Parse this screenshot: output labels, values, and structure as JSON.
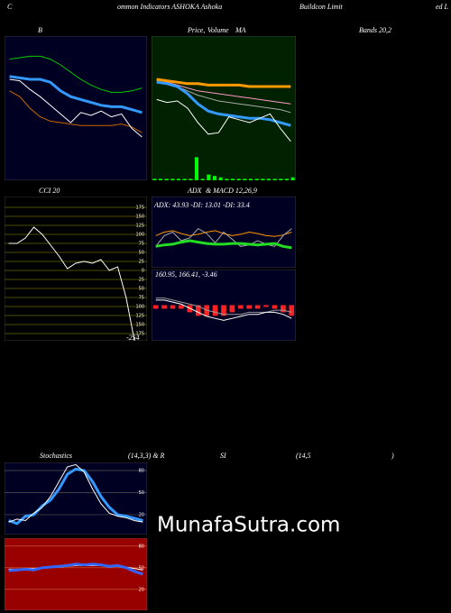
{
  "header": {
    "parts": [
      "C",
      "ommon Indicators ASHOKA Ashoka",
      "Buildcon Limit",
      "ed L"
    ]
  },
  "watermark": "MunafaSutra.com",
  "chart_data": [
    {
      "type": "line",
      "title_parts": [
        "B",
        "Bands 20,2"
      ],
      "background": "#000022",
      "ylim": [
        0,
        100
      ],
      "series": [
        {
          "color": "#00cc00",
          "values": [
            84,
            85,
            86,
            86,
            84,
            80,
            75,
            70,
            66,
            63,
            61,
            61,
            62,
            64
          ]
        },
        {
          "color": "#cc6600",
          "values": [
            62,
            58,
            50,
            44,
            41,
            40,
            39,
            38,
            38,
            38,
            38,
            39,
            37,
            33
          ]
        },
        {
          "color": "#3399ff",
          "thick": true,
          "values": [
            72,
            71,
            70,
            70,
            68,
            62,
            58,
            56,
            54,
            52,
            51,
            51,
            49,
            47
          ]
        },
        {
          "color": "#ffffff",
          "values": [
            70,
            69,
            63,
            58,
            52,
            46,
            40,
            47,
            45,
            48,
            44,
            46,
            36,
            30
          ]
        }
      ]
    },
    {
      "type": "line",
      "title_parts": [
        "Price,",
        "Volume",
        "MA"
      ],
      "background": "#002200",
      "ylim": [
        0,
        100
      ],
      "series": [
        {
          "color": "#00ff00",
          "style": "bar",
          "values": [
            1,
            1,
            1,
            1,
            1,
            1,
            1,
            16,
            1,
            4,
            3,
            2,
            1,
            1,
            1,
            1,
            1,
            1,
            1,
            1,
            1,
            1,
            1,
            2
          ]
        },
        {
          "color": "#aaaaaa",
          "values": [
            69,
            67,
            65,
            62,
            59,
            57,
            55,
            54,
            53,
            52,
            51,
            50,
            49,
            47
          ]
        },
        {
          "color": "#ff99cc",
          "values": [
            70,
            68,
            66,
            64,
            62,
            61,
            60,
            59,
            58,
            57,
            56,
            55,
            54,
            53
          ]
        },
        {
          "color": "#ff9900",
          "thick": true,
          "values": [
            70,
            69,
            68,
            67,
            67,
            66,
            66,
            66,
            66,
            65,
            65,
            65,
            65,
            65
          ]
        },
        {
          "color": "#3399ff",
          "thick": true,
          "values": [
            68,
            67,
            65,
            60,
            53,
            48,
            46,
            45,
            44,
            43,
            43,
            42,
            40,
            38
          ]
        },
        {
          "color": "#ffffff",
          "values": [
            56,
            54,
            55,
            50,
            40,
            32,
            33,
            44,
            42,
            40,
            43,
            46,
            36,
            27
          ]
        }
      ]
    },
    {
      "type": "line",
      "title": "CCI 20",
      "background": "#000000",
      "grid_color": "#666600",
      "ylim": [
        -195,
        205
      ],
      "yticks": [
        175,
        150,
        125,
        100,
        75,
        50,
        25,
        0,
        {
          "value": -25,
          "label": "25"
        },
        {
          "value": -50,
          "label": "50"
        },
        {
          "value": -75,
          "label": "75"
        },
        {
          "value": -100,
          "label": "100"
        },
        {
          "value": -125,
          "label": "125"
        },
        {
          "value": -150,
          "label": "150"
        },
        {
          "value": -175,
          "label": "175"
        }
      ],
      "series": [
        {
          "color": "#ffffff",
          "values": [
            75,
            75,
            90,
            120,
            100,
            70,
            40,
            5,
            20,
            25,
            20,
            30,
            0,
            10,
            -75,
            -195,
            -254
          ]
        }
      ]
    },
    {
      "type": "line",
      "title_parts": [
        "ADX",
        "& MACD 12,26,9"
      ],
      "annotation": "ADX: 43.93 -DI: 13.01 -DI: 33.4",
      "background": "#000022",
      "ylim": [
        0,
        100
      ],
      "series": [
        {
          "color": "#ff9900",
          "values": [
            45,
            50,
            52,
            48,
            45,
            47,
            50,
            52,
            48,
            45,
            47,
            50,
            48,
            45,
            44,
            46,
            50
          ]
        },
        {
          "color": "#aaaaaa",
          "values": [
            30,
            45,
            50,
            38,
            42,
            55,
            48,
            35,
            50,
            40,
            30,
            32,
            38,
            33,
            30,
            45,
            55
          ]
        },
        {
          "color": "#22dd22",
          "thick": true,
          "values": [
            30,
            32,
            33,
            36,
            38,
            36,
            34,
            33,
            33,
            34,
            34,
            33,
            32,
            33,
            34,
            30,
            28
          ]
        }
      ]
    },
    {
      "type": "line",
      "annotation": "160.95, 166.41, -3.46",
      "background": "#000022",
      "ylim": [
        150,
        185
      ],
      "y2lim": [
        -10,
        10
      ],
      "series": [
        {
          "color": "#ff2222",
          "style": "bar",
          "axis": "y2",
          "values": [
            -1,
            -1,
            -1,
            -1,
            -2,
            -3,
            -3,
            -3,
            -3,
            -2,
            -1,
            -1,
            -1,
            -0.5,
            -1,
            -2,
            -3
          ]
        },
        {
          "color": "#999999",
          "values": [
            171,
            171,
            170,
            169,
            168,
            167,
            165,
            164,
            163,
            163,
            163,
            164,
            164,
            164,
            165,
            165,
            164
          ]
        },
        {
          "color": "#ffffff",
          "values": [
            170,
            170,
            169,
            168,
            166,
            164,
            162,
            161,
            160,
            161,
            162,
            163,
            163,
            164,
            164,
            163,
            161
          ]
        }
      ]
    },
    {
      "type": "line",
      "title_parts": [
        "Stochastics",
        "(14,3,3) & R",
        "SI",
        "(14,5",
        ")"
      ],
      "background": "#000022",
      "grid_color": "#555555",
      "ylim": [
        -7,
        91
      ],
      "yticks": [
        80,
        50,
        20
      ],
      "series": [
        {
          "color": "#3399ff",
          "thick": true,
          "values": [
            12,
            8,
            18,
            20,
            32,
            40,
            55,
            75,
            82,
            80,
            65,
            45,
            30,
            20,
            18,
            15,
            12
          ]
        },
        {
          "color": "#ffffff",
          "values": [
            10,
            14,
            12,
            22,
            30,
            45,
            65,
            85,
            88,
            78,
            55,
            35,
            22,
            18,
            16,
            12,
            10
          ]
        }
      ]
    },
    {
      "type": "line",
      "background": "#990000",
      "grid_color": "#cc6633",
      "ylim": [
        -9,
        91
      ],
      "yticks": [
        80,
        50,
        20
      ],
      "series": [
        {
          "color": "#ffffff",
          "values": [
            48,
            48,
            49,
            49,
            50,
            50,
            51,
            52,
            53,
            53,
            53,
            53,
            52,
            52,
            51,
            49,
            47
          ]
        },
        {
          "color": "#3366ff",
          "thick": true,
          "values": [
            46,
            47,
            48,
            47,
            50,
            51,
            52,
            53,
            55,
            54,
            55,
            54,
            52,
            53,
            50,
            45,
            41
          ]
        }
      ]
    }
  ]
}
